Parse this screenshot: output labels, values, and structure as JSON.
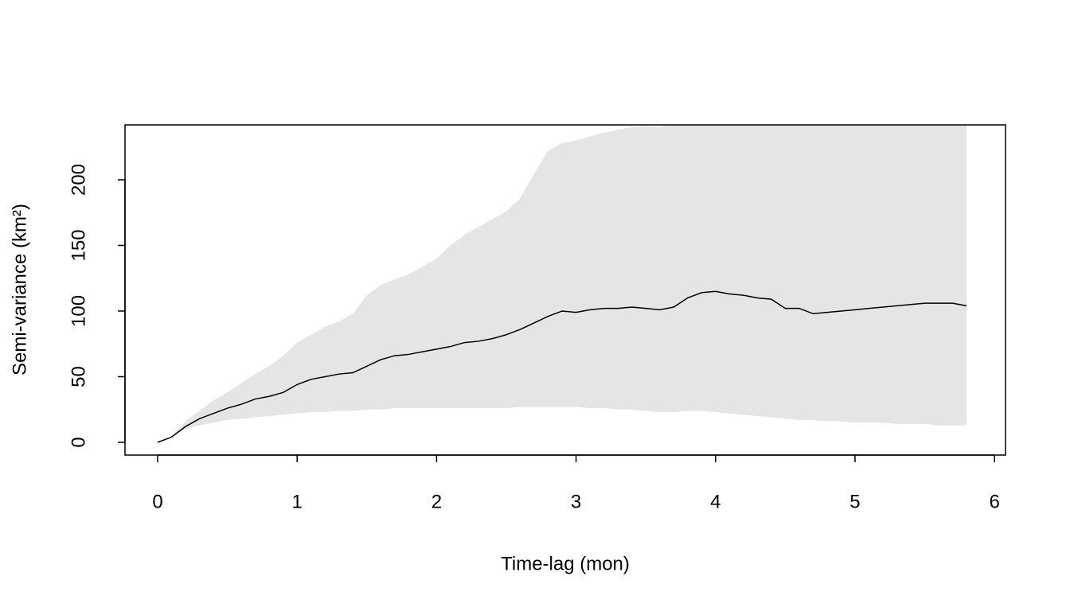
{
  "chart_data": {
    "type": "line",
    "x_label": "Time-lag (mon)",
    "y_label": "Semi-variance (km²)",
    "x": [
      0,
      0.1,
      0.2,
      0.3,
      0.4,
      0.5,
      0.6,
      0.7,
      0.8,
      0.9,
      1.0,
      1.1,
      1.2,
      1.3,
      1.4,
      1.5,
      1.6,
      1.7,
      1.8,
      1.9,
      2.0,
      2.1,
      2.2,
      2.3,
      2.4,
      2.5,
      2.6,
      2.7,
      2.8,
      2.9,
      3.0,
      3.1,
      3.2,
      3.3,
      3.4,
      3.5,
      3.6,
      3.7,
      3.8,
      3.9,
      4.0,
      4.1,
      4.2,
      4.3,
      4.4,
      4.5,
      4.6,
      4.7,
      4.8,
      4.9,
      5.0,
      5.1,
      5.2,
      5.3,
      5.4,
      5.5,
      5.6,
      5.7,
      5.8
    ],
    "values": [
      0,
      4,
      12,
      18,
      22,
      26,
      29,
      33,
      35,
      38,
      44,
      48,
      50,
      52,
      53,
      58,
      63,
      66,
      67,
      69,
      71,
      73,
      76,
      77,
      79,
      82,
      86,
      91,
      96,
      100,
      99,
      101,
      102,
      102,
      103,
      102,
      101,
      103,
      110,
      114,
      115,
      113,
      112,
      110,
      109,
      102,
      102,
      98,
      99,
      100,
      101,
      102,
      103,
      104,
      105,
      106,
      106,
      106,
      104
    ],
    "color": "#000000",
    "band": {
      "color": "#e5e5e5",
      "lower": [
        0,
        5,
        10,
        13,
        15,
        17,
        18,
        19,
        20,
        21,
        22,
        23,
        23,
        24,
        24,
        25,
        25,
        26,
        26,
        26,
        26,
        26,
        26,
        26,
        26,
        26,
        27,
        27,
        27,
        27,
        27,
        26,
        26,
        25,
        25,
        24,
        23,
        23,
        24,
        24,
        23,
        22,
        21,
        20,
        19,
        18,
        17,
        17,
        16,
        16,
        15,
        15,
        15,
        14,
        14,
        14,
        13,
        13,
        13
      ],
      "upper": [
        0,
        5,
        16,
        24,
        32,
        38,
        45,
        52,
        58,
        66,
        76,
        82,
        88,
        92,
        98,
        112,
        120,
        124,
        128,
        134,
        140,
        150,
        158,
        164,
        170,
        176,
        186,
        205,
        222,
        228,
        230,
        233,
        236,
        238,
        240,
        241,
        240,
        245,
        255,
        265,
        270,
        274,
        278,
        281,
        284,
        286,
        288,
        290,
        292,
        294,
        295,
        296,
        297,
        298,
        299,
        300,
        300,
        301,
        301
      ]
    },
    "xlim": [
      -0.234,
      6.079
    ],
    "ylim": [
      -9.7,
      241.8
    ],
    "xticks": [
      0,
      1,
      2,
      3,
      4,
      5,
      6
    ],
    "yticks": [
      0,
      50,
      100,
      150,
      200
    ]
  }
}
